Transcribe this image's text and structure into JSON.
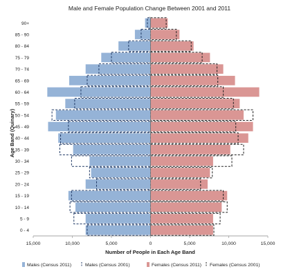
{
  "chart_data": {
    "type": "bar",
    "orientation": "horizontal",
    "title": "Male and Female Population Change Between 2001 and 2011",
    "xlabel": "Number of People in Each Age Band",
    "ylabel": "Age Band (Quinary)",
    "xlim": [
      -15000,
      15000
    ],
    "x_ticks": [
      -15000,
      -10000,
      -5000,
      0,
      5000,
      10000,
      15000
    ],
    "x_tick_labels": [
      "15,000",
      "10,000",
      "5,000",
      "0",
      "5,000",
      "10,000",
      "15,000"
    ],
    "grid": false,
    "legend_position": "bottom",
    "categories": [
      "0 - 4",
      "5 - 9",
      "10 - 14",
      "15 - 19",
      "20 - 24",
      "25 - 29",
      "30 - 34",
      "35 - 39",
      "40 - 44",
      "45 - 49",
      "50 - 54",
      "55 - 59",
      "60 - 64",
      "65 - 69",
      "70 - 74",
      "75 - 79",
      "80 - 84",
      "85 - 90",
      "90+"
    ],
    "series": [
      {
        "name": "Males (Census 2011)",
        "side": "left",
        "style": "filled",
        "color": "#95b3d7",
        "values": [
          8300,
          8300,
          9600,
          10500,
          8300,
          7600,
          7800,
          9900,
          11800,
          13100,
          12100,
          10900,
          13200,
          10400,
          8300,
          6300,
          4100,
          2000,
          700
        ]
      },
      {
        "name": "Males (Census 2001)",
        "side": "left",
        "style": "dashed-outline",
        "color": "#1f3864",
        "values": [
          8100,
          9800,
          10300,
          10100,
          6900,
          7800,
          10100,
          11600,
          11500,
          10500,
          12600,
          9700,
          8900,
          8100,
          6600,
          5000,
          2800,
          1200,
          400
        ]
      },
      {
        "name": "Females (Census 2011)",
        "side": "right",
        "style": "filled",
        "color": "#da9694",
        "values": [
          8000,
          8000,
          9100,
          9800,
          7300,
          7600,
          8000,
          10200,
          12500,
          13100,
          11900,
          11400,
          13900,
          10800,
          9300,
          7600,
          5500,
          3700,
          2200
        ]
      },
      {
        "name": "Females (Census 2001)",
        "side": "right",
        "style": "dashed-outline",
        "color": "#1f1f1f",
        "values": [
          8100,
          8900,
          9800,
          9300,
          6400,
          7900,
          10400,
          11900,
          11200,
          10900,
          13100,
          10600,
          9300,
          8600,
          8500,
          6600,
          5200,
          3300,
          2000
        ]
      }
    ]
  }
}
